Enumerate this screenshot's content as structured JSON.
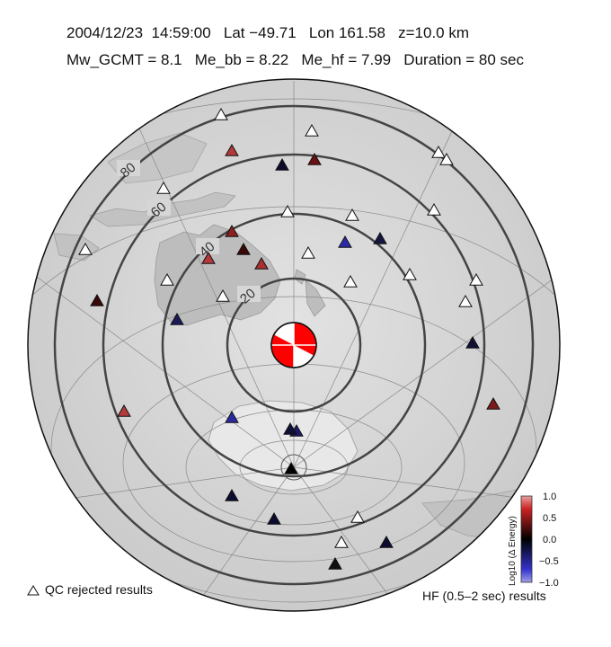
{
  "header": {
    "line1": "2004/12/23  14:59:00   Lat −49.71   Lon 161.58   z=10.0 km",
    "line2": "Mw_GCMT = 8.1   Me_bb = 8.22   Me_hf = 7.99   Duration = 80 sec"
  },
  "map": {
    "distance_ring_labels": [
      "20",
      "40",
      "60",
      "80"
    ],
    "epicenter_marker": "focal-mechanism-beachball",
    "colors": {
      "ring": "#444444",
      "globe": "#d6d6d6",
      "beachball": "#ff0000"
    }
  },
  "stations": [
    {
      "d": 0.05,
      "c": "#000000"
    },
    {
      "d": 0.6,
      "c": "#b23a3a"
    },
    {
      "d": 0.75,
      "c": "#6a1010"
    },
    {
      "d": -0.1,
      "c": "#0a0a2a"
    },
    {
      "d": 0.65,
      "c": "#8a2020"
    },
    {
      "d": 0.35,
      "c": "#3a0808"
    },
    {
      "d": 0.55,
      "c": "#b23a3a"
    },
    {
      "d": 0.7,
      "c": "#a83030"
    },
    {
      "d": 0.4,
      "c": "#3a0808"
    },
    {
      "d": -0.3,
      "c": "#1a1a5a"
    },
    {
      "d": -0.5,
      "c": "#2a2aaa"
    },
    {
      "d": -0.25,
      "c": "#151540"
    },
    {
      "d": -0.2,
      "c": "#101035"
    },
    {
      "d": 0.6,
      "c": "#7a1a1a"
    },
    {
      "d": 0.7,
      "c": "#b23a3a"
    },
    {
      "d": -0.5,
      "c": "#2a2aa0"
    },
    {
      "d": -0.4,
      "c": "#1a1a6a"
    },
    {
      "d": -0.2,
      "c": "#101035"
    },
    {
      "d": -0.15,
      "c": "#0c0c30"
    },
    {
      "d": -0.2,
      "c": "#0c0c30"
    },
    {
      "d": 0.1,
      "c": "#101010"
    }
  ],
  "legend": {
    "qc_text": "QC rejected results",
    "hf_text": "HF (0.5–2 sec) results",
    "colorbar_title": "Log10 (Δ Energy)",
    "colorbar_ticks": [
      "1.0",
      "0.5",
      "0.0",
      "−0.5",
      "−1.0"
    ],
    "colorbar_colors": {
      "top": "#cc0000",
      "mid": "#000000",
      "bottom": "#2222cc"
    }
  }
}
